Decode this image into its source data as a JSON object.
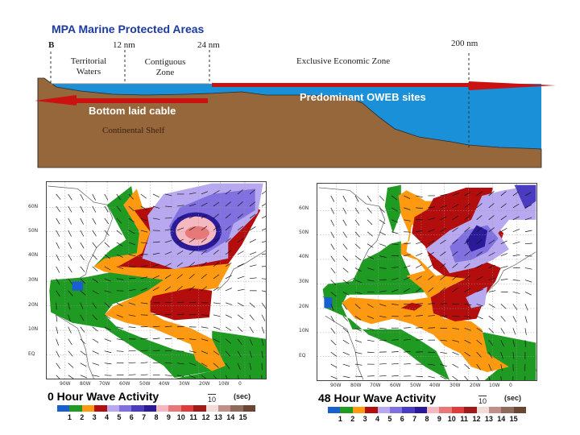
{
  "title": "MPA Marine Protected Areas",
  "diagram": {
    "baseline_label": "B",
    "marks": [
      "12 nm",
      "24 nm",
      "200 nm"
    ],
    "zones": {
      "territorial": [
        "Territorial",
        "Waters"
      ],
      "contiguous": [
        "Contiguous",
        "Zone"
      ],
      "eez": "Exclusive Economic Zone"
    },
    "cable_label": "Bottom laid cable",
    "oweb_label": "Predominant OWEB sites",
    "shelf_label": "Continental Shelf",
    "colors": {
      "ground": "#95673a",
      "water": "#1a90d8",
      "arrow": "#cc1111",
      "title": "#1c3aa0"
    }
  },
  "maps": [
    {
      "title": "0 Hour Wave Activity",
      "ref_vector": "10",
      "unit": "(sec)"
    },
    {
      "title": "48 Hour Wave Activity",
      "ref_vector": "10",
      "unit": "(sec)"
    }
  ],
  "lat_labels": [
    "60N",
    "50N",
    "40N",
    "30N",
    "20N",
    "10N",
    "EQ"
  ],
  "lon_labels": [
    "90W",
    "80W",
    "70W",
    "60W",
    "50W",
    "40W",
    "30W",
    "20W",
    "10W",
    "0"
  ],
  "legend": {
    "labels": [
      "1",
      "2",
      "3",
      "4",
      "5",
      "6",
      "7",
      "8",
      "9",
      "10",
      "11",
      "12",
      "13",
      "14",
      "15"
    ],
    "colors": [
      "#1a5fd0",
      "#1f9a22",
      "#ff9a10",
      "#b30d0d",
      "#b7a8f0",
      "#8070e0",
      "#4a3cc0",
      "#2a1a98",
      "#f5b8c0",
      "#e87878",
      "#e03a3a",
      "#a01a1a",
      "#f2dcd8",
      "#c09088",
      "#8e6a5a",
      "#6a4632"
    ]
  }
}
